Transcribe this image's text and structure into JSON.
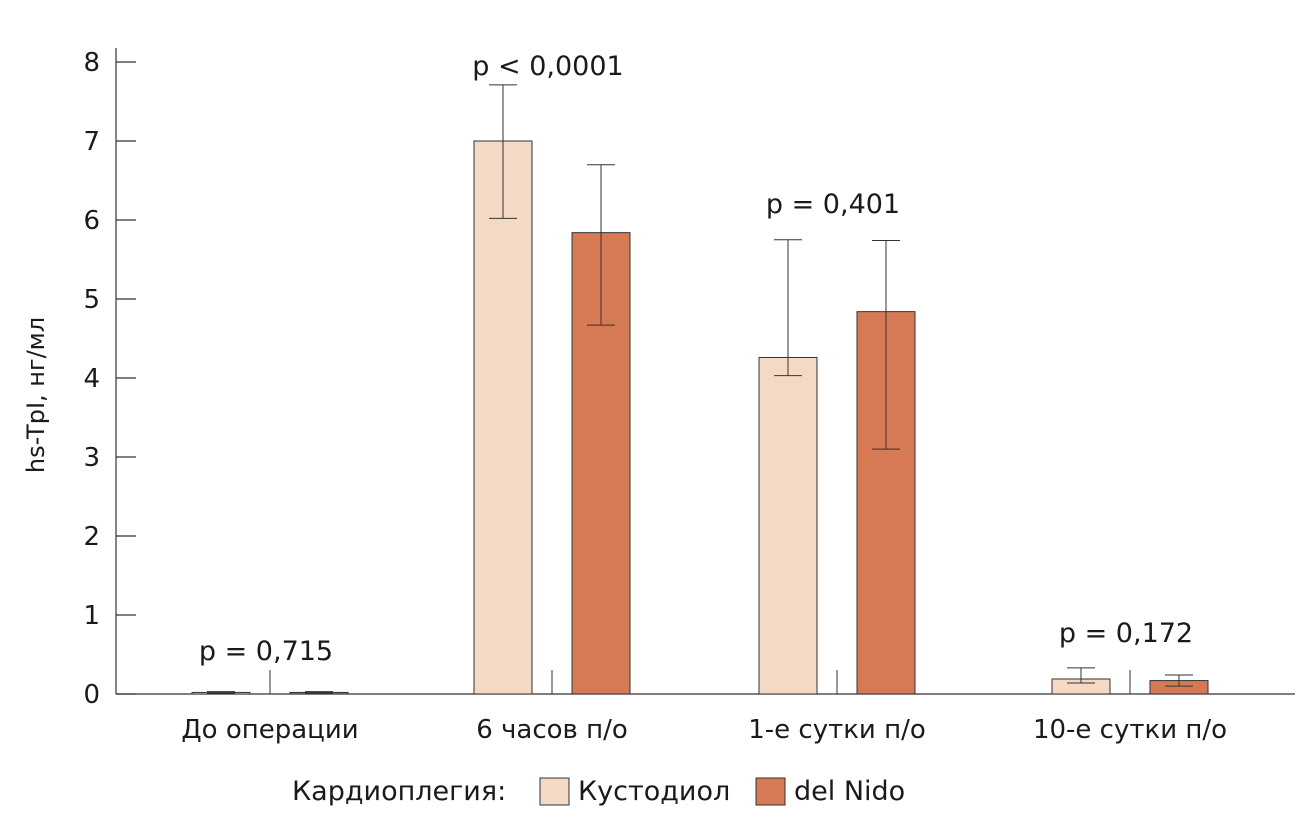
{
  "chart_data": {
    "type": "bar",
    "title": "",
    "xlabel": "",
    "ylabel": "hs-TpI, нг/мл",
    "ylim": [
      0,
      8
    ],
    "yticks": [
      0,
      1,
      2,
      3,
      4,
      5,
      6,
      7,
      8
    ],
    "grid": false,
    "categories": [
      "До операции",
      "6 часов п/о",
      "1-е сутки п/о",
      "10-е сутки п/о"
    ],
    "series": [
      {
        "name": "Кустодиол",
        "color": "#f4d9c4",
        "values": [
          0.02,
          7.0,
          4.26,
          0.19
        ],
        "err_low": [
          0.01,
          6.02,
          4.03,
          0.14
        ],
        "err_high": [
          0.03,
          7.71,
          5.75,
          0.33
        ]
      },
      {
        "name": "del Nido",
        "color": "#d57a55",
        "values": [
          0.02,
          5.84,
          4.84,
          0.17
        ],
        "err_low": [
          0.01,
          4.67,
          3.1,
          0.1
        ],
        "err_high": [
          0.03,
          6.7,
          5.74,
          0.24
        ]
      }
    ],
    "annotations": [
      "p = 0,715",
      "p < 0,0001",
      "p = 0,401",
      "p = 0,172"
    ],
    "legend": {
      "title": "Кардиоплегия:",
      "placement": "bottom-center"
    }
  }
}
